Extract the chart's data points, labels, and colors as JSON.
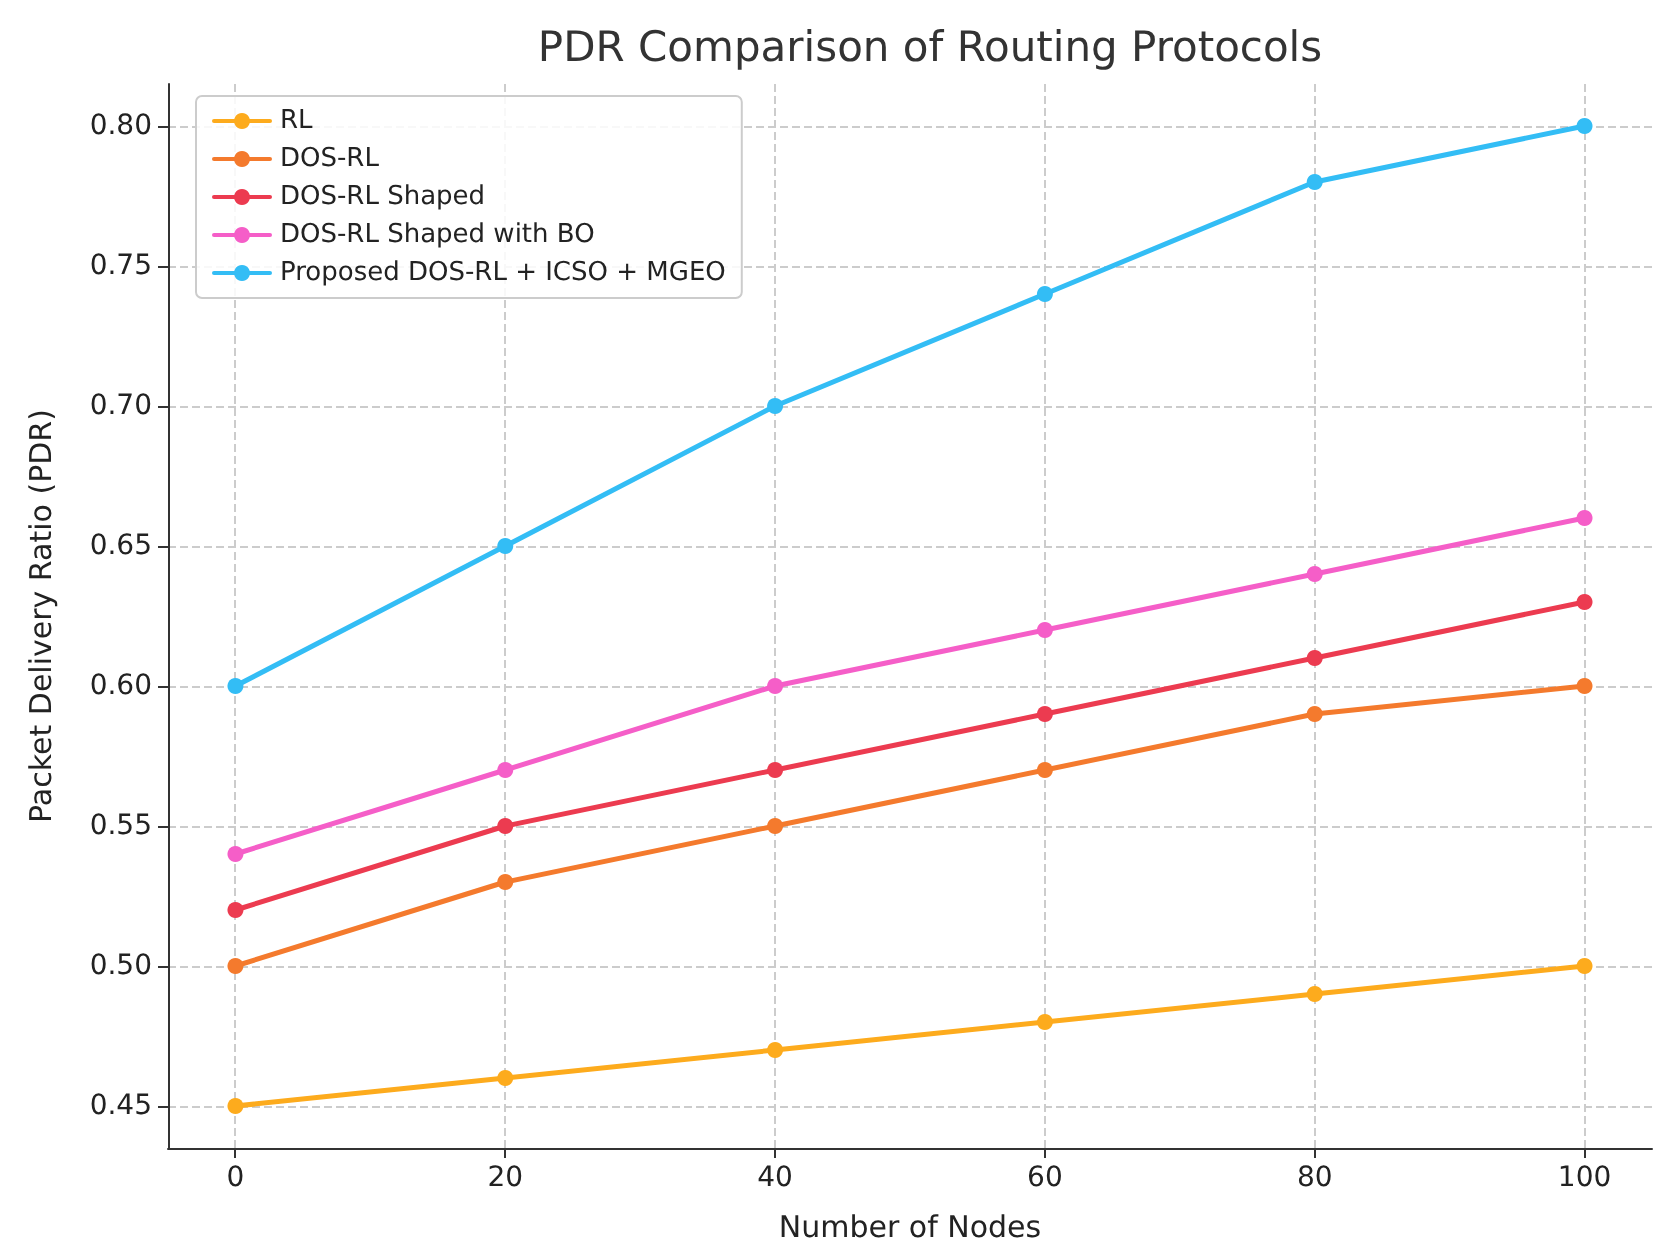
{
  "chart_data": {
    "type": "line",
    "title": "PDR Comparison of Routing Protocols",
    "xlabel": "Number of Nodes",
    "ylabel": "Packet Delivery Ratio (PDR)",
    "x": [
      0,
      20,
      40,
      60,
      80,
      100
    ],
    "series": [
      {
        "name": "RL",
        "color": "#fdab1d",
        "values": [
          0.45,
          0.46,
          0.47,
          0.48,
          0.49,
          0.5
        ]
      },
      {
        "name": "DOS-RL",
        "color": "#f47a2d",
        "values": [
          0.5,
          0.53,
          0.55,
          0.57,
          0.59,
          0.6
        ]
      },
      {
        "name": "DOS-RL Shaped",
        "color": "#ec3b50",
        "values": [
          0.52,
          0.55,
          0.57,
          0.59,
          0.61,
          0.63
        ]
      },
      {
        "name": "DOS-RL Shaped with BO",
        "color": "#f55ec8",
        "values": [
          0.54,
          0.57,
          0.6,
          0.62,
          0.64,
          0.66
        ]
      },
      {
        "name": "Proposed DOS-RL + ICSO + MGEO",
        "color": "#33bdf5",
        "values": [
          0.6,
          0.65,
          0.7,
          0.74,
          0.78,
          0.8
        ]
      }
    ],
    "xlim": [
      -5,
      105
    ],
    "xticks": [
      0,
      20,
      40,
      60,
      80,
      100
    ],
    "ylim": [
      0.435,
      0.815
    ],
    "yticks": [
      {
        "value": 0.45,
        "label": "0.45"
      },
      {
        "value": 0.5,
        "label": "0.50"
      },
      {
        "value": 0.55,
        "label": "0.55"
      },
      {
        "value": 0.6,
        "label": "0.60"
      },
      {
        "value": 0.65,
        "label": "0.65"
      },
      {
        "value": 0.7,
        "label": "0.70"
      },
      {
        "value": 0.75,
        "label": "0.75"
      },
      {
        "value": 0.8,
        "label": "0.80"
      }
    ],
    "grid": true,
    "legend": "top left",
    "marker": "circle",
    "line_style": "solid"
  }
}
